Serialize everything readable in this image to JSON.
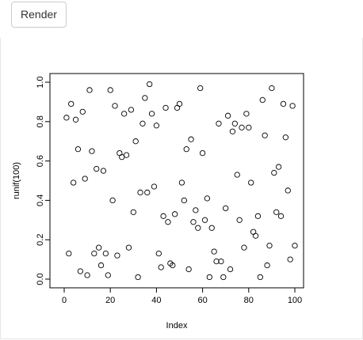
{
  "toolbar": {
    "render_label": "Render"
  },
  "chart_data": {
    "type": "scatter",
    "title": "",
    "xlabel": "Index",
    "ylabel": "runif(100)",
    "xlim": [
      0,
      100
    ],
    "ylim": [
      0,
      1
    ],
    "xticks": [
      0,
      20,
      40,
      60,
      80,
      100
    ],
    "yticks": [
      0.0,
      0.2,
      0.4,
      0.6,
      0.8,
      1.0
    ],
    "xtick_labels": [
      "0",
      "20",
      "40",
      "60",
      "80",
      "100"
    ],
    "ytick_labels": [
      "0.0",
      "0.2",
      "0.4",
      "0.6",
      "0.8",
      "1.0"
    ],
    "grid": false,
    "marker": "open-circle",
    "series": [
      {
        "x": [
          1,
          2,
          3,
          4,
          5,
          6,
          7,
          8,
          9,
          10,
          11,
          12,
          13,
          14,
          15,
          16,
          17,
          18,
          19,
          20,
          21,
          22,
          23,
          24,
          25,
          26,
          27,
          28,
          29,
          30,
          31,
          32,
          33,
          34,
          35,
          36,
          37,
          38,
          39,
          40,
          41,
          42,
          43,
          44,
          45,
          46,
          47,
          48,
          49,
          50,
          51,
          52,
          53,
          54,
          55,
          56,
          57,
          58,
          59,
          60,
          61,
          62,
          63,
          64,
          65,
          66,
          67,
          68,
          69,
          70,
          71,
          72,
          73,
          74,
          75,
          76,
          77,
          78,
          79,
          80,
          81,
          82,
          83,
          84,
          85,
          86,
          87,
          88,
          89,
          90,
          91,
          92,
          93,
          94,
          95,
          96,
          97,
          98,
          99,
          100
        ],
        "y": [
          0.82,
          0.13,
          0.89,
          0.49,
          0.81,
          0.66,
          0.04,
          0.85,
          0.51,
          0.02,
          0.96,
          0.65,
          0.13,
          0.56,
          0.16,
          0.07,
          0.55,
          0.13,
          0.02,
          0.96,
          0.4,
          0.88,
          0.12,
          0.64,
          0.62,
          0.84,
          0.63,
          0.16,
          0.86,
          0.34,
          0.7,
          0.01,
          0.44,
          0.79,
          0.92,
          0.44,
          0.99,
          0.84,
          0.47,
          0.78,
          0.13,
          0.06,
          0.32,
          0.87,
          0.29,
          0.08,
          0.07,
          0.33,
          0.87,
          0.89,
          0.49,
          0.4,
          0.66,
          0.05,
          0.71,
          0.29,
          0.35,
          0.26,
          0.97,
          0.64,
          0.3,
          0.41,
          0.01,
          0.26,
          0.14,
          0.09,
          0.79,
          0.09,
          0.01,
          0.36,
          0.83,
          0.05,
          0.75,
          0.79,
          0.53,
          0.3,
          0.77,
          0.16,
          0.84,
          0.77,
          0.49,
          0.24,
          0.22,
          0.32,
          0.01,
          0.91,
          0.73,
          0.07,
          0.17,
          0.97,
          0.54,
          0.34,
          0.57,
          0.32,
          0.89,
          0.72,
          0.45,
          0.1,
          0.88,
          0.17
        ]
      }
    ]
  }
}
